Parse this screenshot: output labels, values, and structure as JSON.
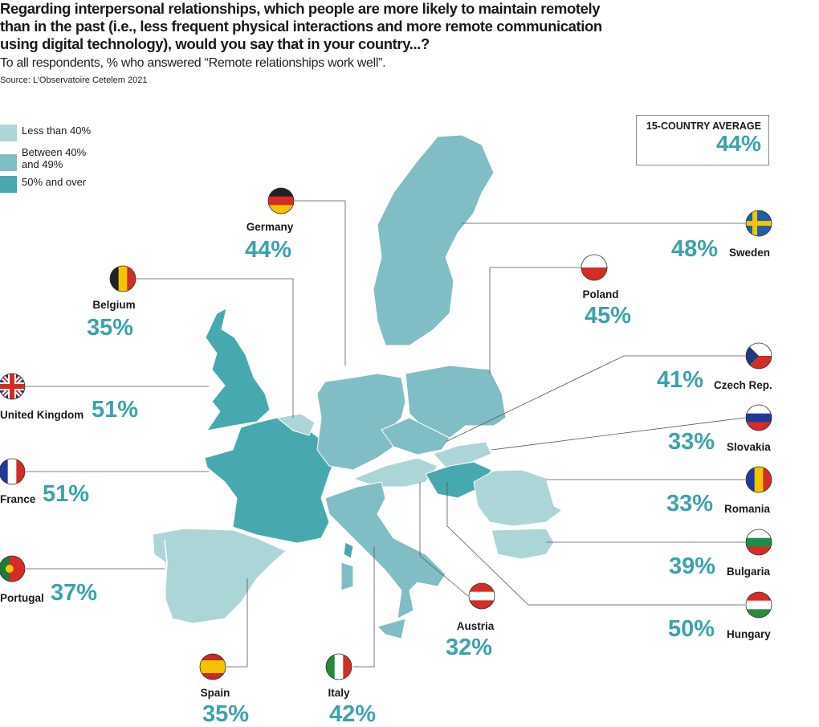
{
  "header": {
    "title": "Regarding interpersonal relationships, which people are more likely to maintain remotely than in the past (i.e., less frequent physical interactions and more remote communication using digital technology), would you say that in your country...?",
    "subtitle": "To all respondents, % who answered “Remote relationships work well”.",
    "source": "Source: L’Observatoire Cetelem 2021"
  },
  "legend": [
    {
      "label": "Less than 40%",
      "color": "#acd5d8"
    },
    {
      "label": "Between 40% and 49%",
      "color": "#80bdc4"
    },
    {
      "label": "50% and over",
      "color": "#47a9af"
    }
  ],
  "average": {
    "label": "15-COUNTRY AVERAGE",
    "value": "44%"
  },
  "countries": [
    {
      "name": "Germany",
      "value": "44%",
      "percent": 44,
      "flag": {
        "dir": "h",
        "colors": [
          "#222",
          "#d32d27",
          "#f5c400"
        ]
      }
    },
    {
      "name": "Belgium",
      "value": "35%",
      "percent": 35,
      "flag": {
        "dir": "v",
        "colors": [
          "#222",
          "#f5c400",
          "#d32d27"
        ]
      }
    },
    {
      "name": "United Kingdom",
      "value": "51%",
      "percent": 51,
      "flag": {
        "dir": "uk",
        "colors": [
          "#1f3a7a",
          "#fff",
          "#d32d27"
        ]
      }
    },
    {
      "name": "France",
      "value": "51%",
      "percent": 51,
      "flag": {
        "dir": "v",
        "colors": [
          "#22399a",
          "#fff",
          "#d32d27"
        ]
      }
    },
    {
      "name": "Portugal",
      "value": "37%",
      "percent": 37,
      "flag": {
        "dir": "v2",
        "colors": [
          "#1e7a3a",
          "#d32d27"
        ]
      }
    },
    {
      "name": "Spain",
      "value": "35%",
      "percent": 35,
      "flag": {
        "dir": "h3",
        "colors": [
          "#c8281e",
          "#f5c400",
          "#c8281e"
        ]
      }
    },
    {
      "name": "Italy",
      "value": "42%",
      "percent": 42,
      "flag": {
        "dir": "v",
        "colors": [
          "#1e8c3a",
          "#fff",
          "#d32d27"
        ]
      }
    },
    {
      "name": "Austria",
      "value": "32%",
      "percent": 32,
      "flag": {
        "dir": "h",
        "colors": [
          "#d32d27",
          "#fff",
          "#d32d27"
        ]
      }
    },
    {
      "name": "Sweden",
      "value": "48%",
      "percent": 48,
      "flag": {
        "dir": "se",
        "colors": [
          "#1f5fa8",
          "#f5c400"
        ]
      }
    },
    {
      "name": "Poland",
      "value": "45%",
      "percent": 45,
      "flag": {
        "dir": "h2",
        "colors": [
          "#fff",
          "#d32d27"
        ]
      }
    },
    {
      "name": "Czech Rep.",
      "value": "41%",
      "percent": 41,
      "flag": {
        "dir": "cz",
        "colors": [
          "#fff",
          "#d32d27",
          "#1f3a7a"
        ]
      }
    },
    {
      "name": "Slovakia",
      "value": "33%",
      "percent": 33,
      "flag": {
        "dir": "h",
        "colors": [
          "#fff",
          "#1f3a9a",
          "#d32d27"
        ]
      }
    },
    {
      "name": "Romania",
      "value": "33%",
      "percent": 33,
      "flag": {
        "dir": "v",
        "colors": [
          "#1f3a9a",
          "#f5c400",
          "#d32d27"
        ]
      }
    },
    {
      "name": "Bulgaria",
      "value": "39%",
      "percent": 39,
      "flag": {
        "dir": "h",
        "colors": [
          "#fff",
          "#1e8c4a",
          "#d32d27"
        ]
      }
    },
    {
      "name": "Hungary",
      "value": "50%",
      "percent": 50,
      "flag": {
        "dir": "h",
        "colors": [
          "#d32d27",
          "#fff",
          "#2e8a3e"
        ]
      }
    }
  ]
}
